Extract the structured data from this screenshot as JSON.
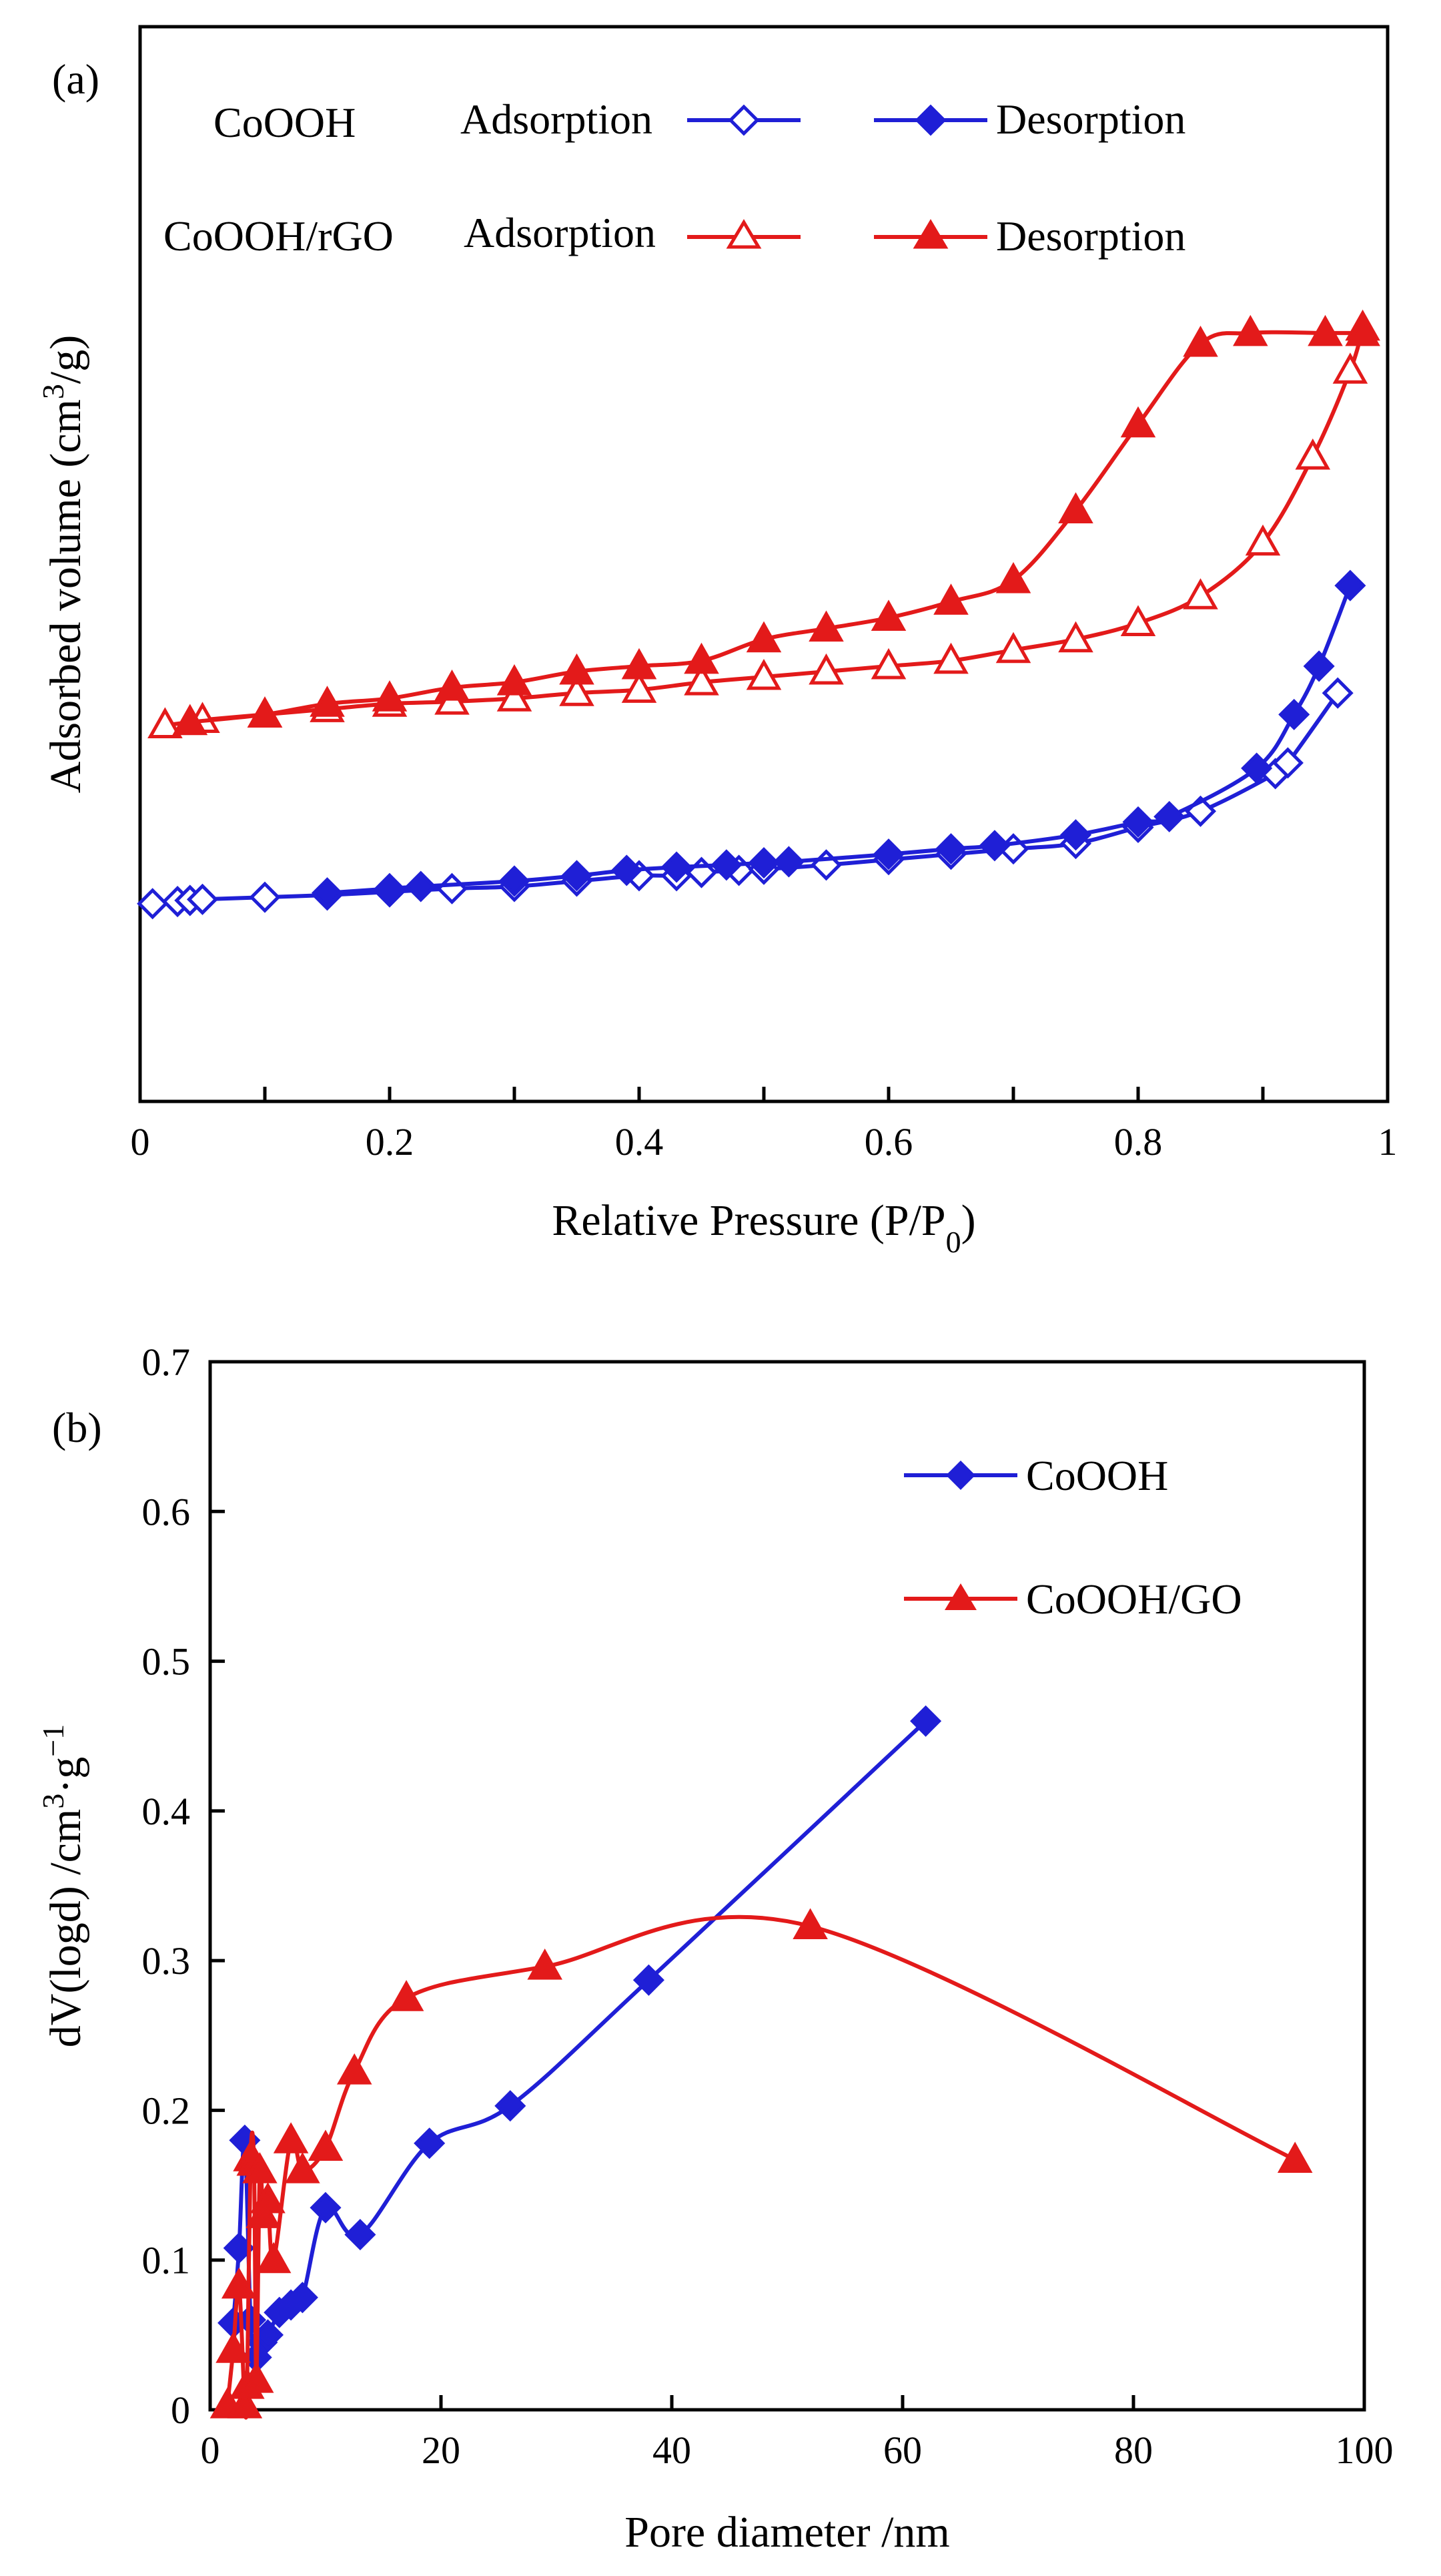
{
  "chart_data": [
    {
      "panel": "(a)",
      "type": "line",
      "xlabel": "Relative Pressure (P/P0)",
      "xlabel_main": "Relative Pressure (P/P",
      "xlabel_sub": "0",
      "xlabel_close": ")",
      "ylabel": "Adsorbed volume (cm3/g)",
      "ylabel_main": "Adsorbed volume (cm",
      "ylabel_sup": "3",
      "ylabel_close": "/g)",
      "xlim": [
        0,
        1
      ],
      "ylim": [
        0,
        1
      ],
      "yticks_shown": false,
      "xticks": [
        "0",
        "0.2",
        "0.4",
        "0.6",
        "0.8",
        "1"
      ],
      "legend": {
        "rows": [
          {
            "sample": "CoOOH",
            "adsorption_label": "Adsorption",
            "desorption_label": "Desorption",
            "color": "#1f1fd6"
          },
          {
            "sample": "CoOOH/rGO",
            "adsorption_label": "Adsorption",
            "desorption_label": "Desorption",
            "color": "#e31a1a"
          }
        ]
      },
      "series": [
        {
          "name": "CoOOH Adsorption",
          "color": "#1f1fd6",
          "marker": "diamond-open",
          "x": [
            0.01,
            0.03,
            0.04,
            0.05,
            0.1,
            0.15,
            0.2,
            0.25,
            0.3,
            0.35,
            0.4,
            0.43,
            0.45,
            0.48,
            0.5,
            0.55,
            0.6,
            0.65,
            0.7,
            0.75,
            0.8,
            0.85,
            0.91,
            0.92,
            0.96
          ],
          "y": [
            0.184,
            0.186,
            0.187,
            0.188,
            0.19,
            0.192,
            0.195,
            0.198,
            0.2,
            0.205,
            0.21,
            0.21,
            0.213,
            0.215,
            0.216,
            0.22,
            0.225,
            0.23,
            0.235,
            0.24,
            0.255,
            0.27,
            0.305,
            0.315,
            0.38
          ]
        },
        {
          "name": "CoOOH Desorption",
          "color": "#1f1fd6",
          "marker": "diamond-filled",
          "x": [
            0.15,
            0.2,
            0.225,
            0.3,
            0.35,
            0.39,
            0.43,
            0.47,
            0.5,
            0.52,
            0.6,
            0.65,
            0.685,
            0.75,
            0.8,
            0.825,
            0.895,
            0.925,
            0.945,
            0.97
          ],
          "y": [
            0.194,
            0.198,
            0.2,
            0.205,
            0.21,
            0.215,
            0.218,
            0.22,
            0.222,
            0.223,
            0.23,
            0.235,
            0.238,
            0.248,
            0.26,
            0.265,
            0.31,
            0.36,
            0.405,
            0.48
          ]
        },
        {
          "name": "CoOOH/rGO Adsorption",
          "color": "#e31a1a",
          "marker": "triangle-open",
          "x": [
            0.02,
            0.04,
            0.05,
            0.1,
            0.15,
            0.2,
            0.25,
            0.3,
            0.35,
            0.4,
            0.45,
            0.5,
            0.55,
            0.6,
            0.65,
            0.7,
            0.75,
            0.8,
            0.85,
            0.9,
            0.94,
            0.97,
            0.98
          ],
          "y": [
            0.35,
            0.353,
            0.355,
            0.36,
            0.365,
            0.37,
            0.372,
            0.375,
            0.38,
            0.383,
            0.39,
            0.395,
            0.4,
            0.405,
            0.41,
            0.42,
            0.43,
            0.445,
            0.47,
            0.52,
            0.6,
            0.68,
            0.72
          ]
        },
        {
          "name": "CoOOH/rGO Desorption",
          "color": "#e31a1a",
          "marker": "triangle-filled",
          "x": [
            0.04,
            0.1,
            0.15,
            0.2,
            0.25,
            0.3,
            0.35,
            0.4,
            0.45,
            0.5,
            0.55,
            0.6,
            0.65,
            0.7,
            0.75,
            0.8,
            0.85,
            0.89,
            0.95,
            0.98
          ],
          "y": [
            0.353,
            0.36,
            0.37,
            0.375,
            0.385,
            0.39,
            0.4,
            0.405,
            0.41,
            0.43,
            0.44,
            0.45,
            0.465,
            0.485,
            0.55,
            0.63,
            0.705,
            0.715,
            0.715,
            0.715
          ]
        }
      ]
    },
    {
      "panel": "(b)",
      "type": "line",
      "xlabel": "Pore diameter /nm",
      "ylabel": "dV(logd) /cm3·g−1",
      "ylabel_main": "dV(logd) /cm",
      "ylabel_sup1": "3",
      "ylabel_mid": "·g",
      "ylabel_sup2": "−1",
      "xlim": [
        0,
        100
      ],
      "ylim": [
        0,
        0.7
      ],
      "xticks": [
        "0",
        "20",
        "40",
        "60",
        "80",
        "100"
      ],
      "yticks": [
        "0",
        "0.1",
        "0.2",
        "0.3",
        "0.4",
        "0.5",
        "0.6",
        "0.7"
      ],
      "legend": {
        "position": "top-right"
      },
      "series": [
        {
          "name": "CoOOH",
          "color": "#1f1fd6",
          "marker": "diamond-filled",
          "x": [
            2,
            2.5,
            3,
            3.5,
            4,
            4.5,
            5,
            6,
            7,
            8,
            10,
            13,
            19,
            26,
            38,
            62
          ],
          "y": [
            0.058,
            0.108,
            0.18,
            0.06,
            0.035,
            0.045,
            0.05,
            0.065,
            0.07,
            0.075,
            0.135,
            0.117,
            0.178,
            0.203,
            0.287,
            0.46
          ]
        },
        {
          "name": "CoOOH/GO",
          "color": "#e31a1a",
          "marker": "triangle-filled",
          "x": [
            1.5,
            2,
            2.5,
            3,
            3.2,
            3.5,
            3.8,
            4,
            4.3,
            4.6,
            5,
            5.5,
            7,
            8,
            10,
            12.5,
            17,
            29,
            52,
            94
          ],
          "y": [
            0.003,
            0.04,
            0.083,
            0.003,
            0.016,
            0.168,
            0.165,
            0.02,
            0.16,
            0.13,
            0.14,
            0.1,
            0.18,
            0.16,
            0.175,
            0.226,
            0.275,
            0.296,
            0.323,
            0.167
          ]
        }
      ]
    }
  ]
}
